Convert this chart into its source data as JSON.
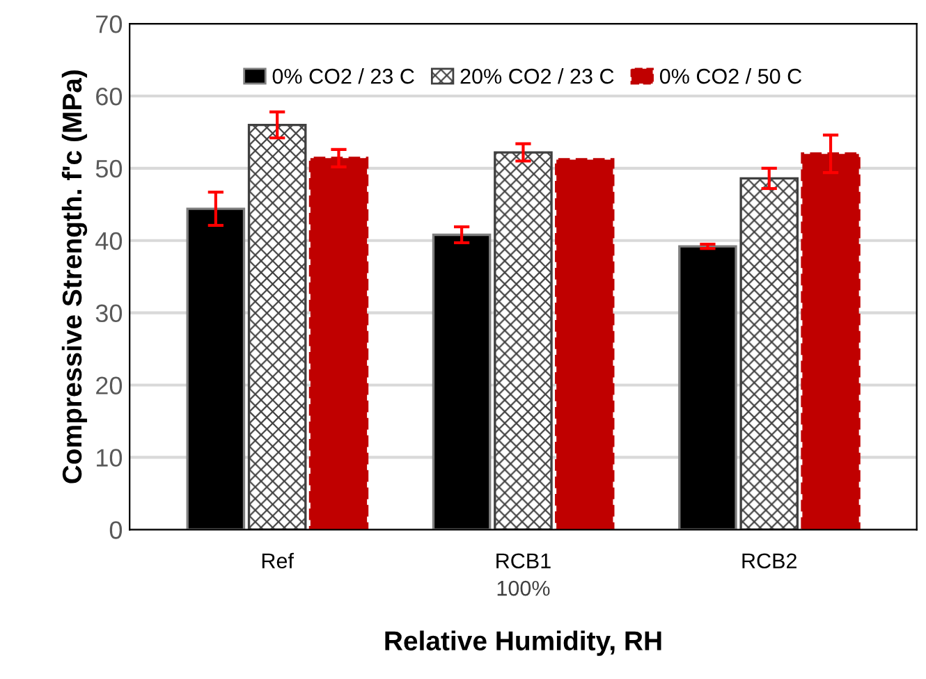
{
  "chart_data": {
    "type": "bar",
    "xlabel": "Relative Humidity, RH",
    "ylabel": "Compressive Strength. f'c (MPa)",
    "categories": [
      "Ref",
      "RCB1",
      "RCB2"
    ],
    "series": [
      {
        "name": "0% CO2 / 23 C",
        "color": "#000000",
        "values": [
          44.4,
          40.8,
          39.2
        ],
        "errors": [
          2.3,
          1.1,
          0.3
        ]
      },
      {
        "name": "20% CO2 / 23 C",
        "color": "#404040",
        "values": [
          56,
          52.2,
          48.6
        ],
        "errors": [
          1.8,
          1.2,
          1.4
        ]
      },
      {
        "name": "0% CO2 / 50 C",
        "color": "#c00000",
        "values": [
          51.4,
          51.2,
          52
        ],
        "errors": [
          1.2,
          null,
          2.6
        ],
        "line_style": "dashed"
      }
    ],
    "annotations": [
      "100%"
    ],
    "ylim": [
      0,
      70
    ],
    "yticks": [
      0,
      10,
      20,
      30,
      40,
      50,
      60,
      70
    ],
    "grid": "y",
    "legend": "top"
  }
}
